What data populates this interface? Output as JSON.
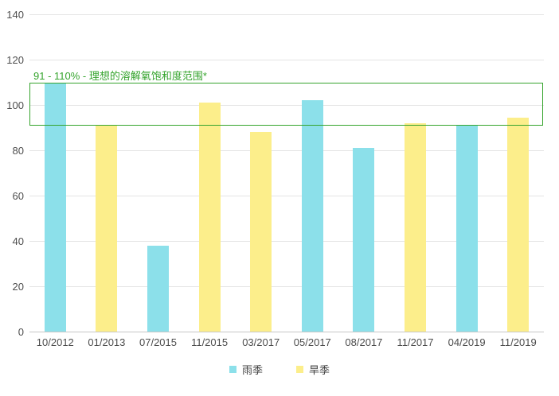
{
  "chart_data": {
    "type": "bar",
    "categories": [
      "10/2012",
      "01/2013",
      "07/2015",
      "11/2015",
      "03/2017",
      "05/2017",
      "08/2017",
      "11/2017",
      "04/2019",
      "11/2019"
    ],
    "series": [
      {
        "name": "雨季",
        "color": "#8CE0EA",
        "values": [
          109.5,
          null,
          38,
          null,
          null,
          102,
          81,
          null,
          91,
          null
        ]
      },
      {
        "name": "旱季",
        "color": "#FCEE8B",
        "values": [
          null,
          91,
          null,
          101,
          88,
          null,
          null,
          92,
          null,
          94.5
        ]
      }
    ],
    "title": "",
    "xlabel": "",
    "ylabel": "",
    "ylim": [
      0,
      140
    ],
    "ytick_step": 20,
    "yticks": [
      0,
      20,
      40,
      60,
      80,
      100,
      120,
      140
    ],
    "grid": true,
    "legend_position": "bottom",
    "annotation": {
      "text": "91 - 110% - 理想的溶解氧饱和度范围*",
      "y_from": 91,
      "y_to": 110,
      "color": "#35a42d"
    }
  },
  "colors": {
    "background": "#ffffff",
    "gridline": "#e4e4e4",
    "axis_line": "#c7c7c7",
    "axis_text": "#4d4d4d",
    "legend_text": "#404040",
    "rainy_season": "#8CE0EA",
    "dry_season": "#FCEE8B",
    "ideal_range_green": "#35a42d"
  }
}
